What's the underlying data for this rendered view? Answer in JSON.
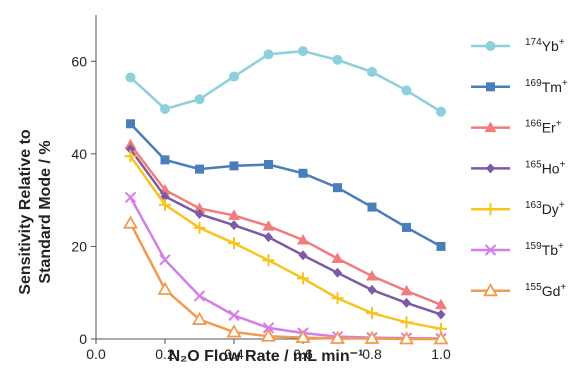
{
  "chart_data": {
    "type": "line",
    "xlabel": "N₂O Flow Rate / mL min⁻¹",
    "ylabel_lines": [
      "Sensitivity Relative to",
      "Standard Mode / %"
    ],
    "xlim": [
      0.0,
      1.0
    ],
    "ylim": [
      0,
      70
    ],
    "xticks": [
      0.0,
      0.2,
      0.4,
      0.6,
      0.8,
      1.0
    ],
    "yticks": [
      0,
      20,
      40,
      60
    ],
    "xtick_labels": [
      "0.0",
      "0.2",
      "0.4",
      "0.6",
      "0.8",
      "1.0"
    ],
    "ytick_labels": [
      "0",
      "20",
      "40",
      "60"
    ],
    "grid": false,
    "legend_position": "right",
    "x": [
      0.1,
      0.2,
      0.3,
      0.4,
      0.5,
      0.6,
      0.7,
      0.8,
      0.9,
      1.0
    ],
    "series": [
      {
        "mass": "174",
        "element": "Yb",
        "charge": "+",
        "color": "#8ecfdc",
        "marker": "circle",
        "values": [
          56.5,
          49.7,
          51.8,
          56.7,
          61.5,
          62.2,
          60.3,
          57.7,
          53.7,
          49.1
        ]
      },
      {
        "mass": "169",
        "element": "Tm",
        "charge": "+",
        "color": "#4a7ebb",
        "marker": "square",
        "values": [
          46.5,
          38.7,
          36.7,
          37.4,
          37.7,
          35.8,
          32.7,
          28.5,
          24.1,
          20.0
        ]
      },
      {
        "mass": "166",
        "element": "Er",
        "charge": "+",
        "color": "#f17c7c",
        "marker": "triangle",
        "values": [
          42.0,
          32.2,
          28.2,
          26.7,
          24.4,
          21.4,
          17.4,
          13.6,
          10.4,
          7.4
        ]
      },
      {
        "mass": "165",
        "element": "Ho",
        "charge": "+",
        "color": "#7b5aa6",
        "marker": "diamond",
        "values": [
          41.0,
          30.8,
          27.0,
          24.6,
          22.0,
          18.1,
          14.3,
          10.6,
          7.8,
          5.3
        ]
      },
      {
        "mass": "163",
        "element": "Dy",
        "charge": "+",
        "color": "#f9c31f",
        "marker": "plus",
        "values": [
          39.5,
          29.0,
          24.0,
          20.7,
          17.0,
          13.1,
          8.8,
          5.6,
          3.6,
          2.2
        ]
      },
      {
        "mass": "159",
        "element": "Tb",
        "charge": "+",
        "color": "#d57ee8",
        "marker": "x",
        "values": [
          30.6,
          17.1,
          9.3,
          5.1,
          2.4,
          1.3,
          0.5,
          0.3,
          0.2,
          0.1
        ]
      },
      {
        "mass": "155",
        "element": "Gd",
        "charge": "+",
        "color": "#f29a50",
        "marker": "open-triangle",
        "values": [
          25.0,
          10.7,
          4.2,
          1.5,
          0.6,
          0.3,
          0.1,
          0.1,
          0.0,
          0.0
        ]
      }
    ]
  }
}
